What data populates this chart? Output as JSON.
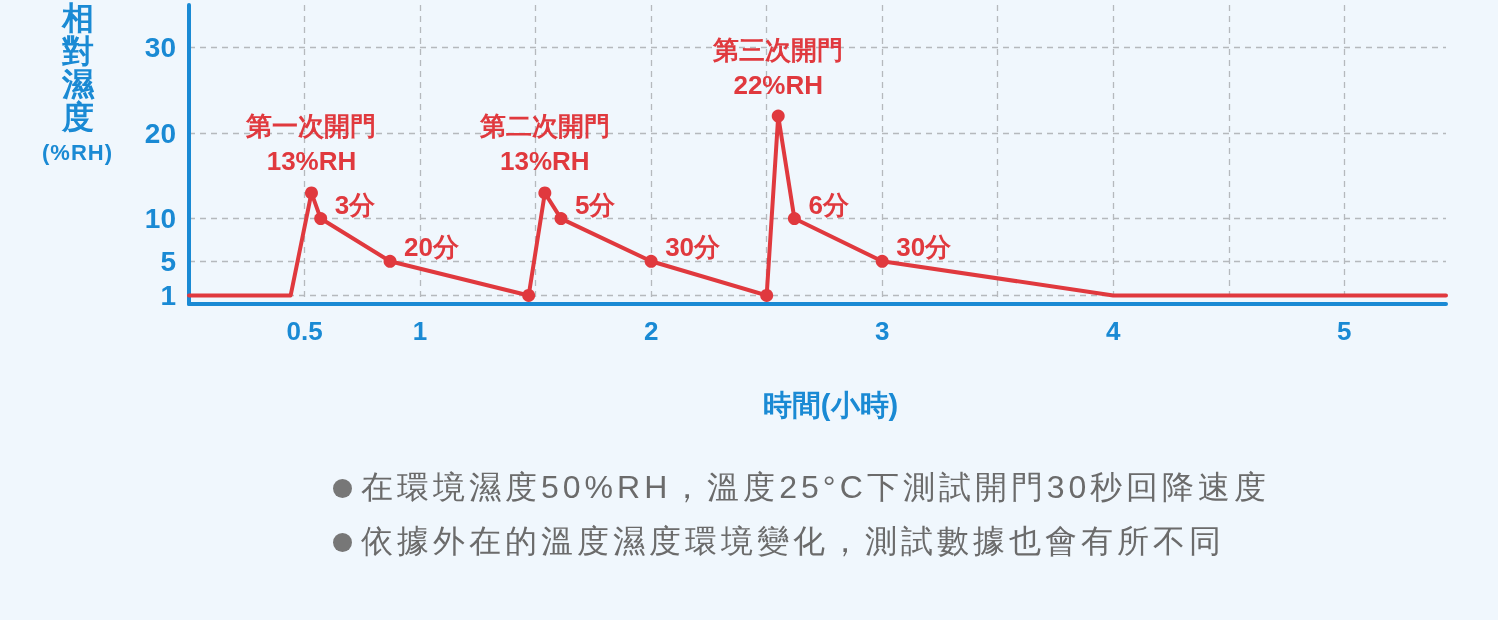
{
  "chart_data": {
    "type": "line",
    "xlabel": "時間(小時)",
    "ylabel": "相對濕度\n(%RH)",
    "xlim": [
      0,
      5.44
    ],
    "xticks": [
      0.5,
      1,
      {
        "value": 1.5,
        "label": null
      },
      2,
      {
        "value": 2.5,
        "label": null
      },
      3,
      {
        "value": 3.5,
        "label": null
      },
      4,
      {
        "value": 4.5,
        "label": null
      },
      5
    ],
    "ylim": [
      0,
      35
    ],
    "yticks": [
      1,
      5,
      10,
      20,
      30
    ],
    "grid": true,
    "series": [
      {
        "color": "#e0393e",
        "marker": "none",
        "x": [
          0,
          0.44,
          0.53,
          0.57,
          0.87,
          1.47,
          1.54,
          1.61,
          2.0,
          2.5,
          2.55,
          2.62,
          3.0,
          4.0,
          5.44
        ],
        "values": [
          1,
          1,
          13,
          10,
          5,
          1,
          13,
          10,
          5,
          1,
          22,
          10,
          5,
          1,
          1
        ]
      },
      {
        "type": "scatter",
        "color": "#e0393e",
        "marker": "circle",
        "x": [
          0.53,
          0.57,
          0.87,
          1.47,
          1.54,
          1.61,
          2.0,
          2.5,
          2.55,
          2.62,
          3.0
        ],
        "values": [
          13,
          10,
          5,
          1,
          13,
          10,
          5,
          1,
          22,
          10,
          5
        ]
      }
    ],
    "annotations": [
      {
        "text": "第一次開門\n13%RH",
        "x": 0.53,
        "y": 13
      },
      {
        "text": "3分",
        "x": 0.57,
        "y": 10
      },
      {
        "text": "20分",
        "x": 0.87,
        "y": 5
      },
      {
        "text": "第二次開門\n13%RH",
        "x": 1.54,
        "y": 13
      },
      {
        "text": "5分",
        "x": 1.61,
        "y": 10
      },
      {
        "text": "30分",
        "x": 2.0,
        "y": 5
      },
      {
        "text": "第三次開門\n22%RH",
        "x": 2.55,
        "y": 22
      },
      {
        "text": "6分",
        "x": 2.62,
        "y": 10
      },
      {
        "text": "30分",
        "x": 3.0,
        "y": 5
      },
      "在環境濕度50%RH，溫度25°C下測試開門30秒回降速度",
      "依據外在的溫度濕度環境變化，測試數據也會有所不同"
    ]
  }
}
